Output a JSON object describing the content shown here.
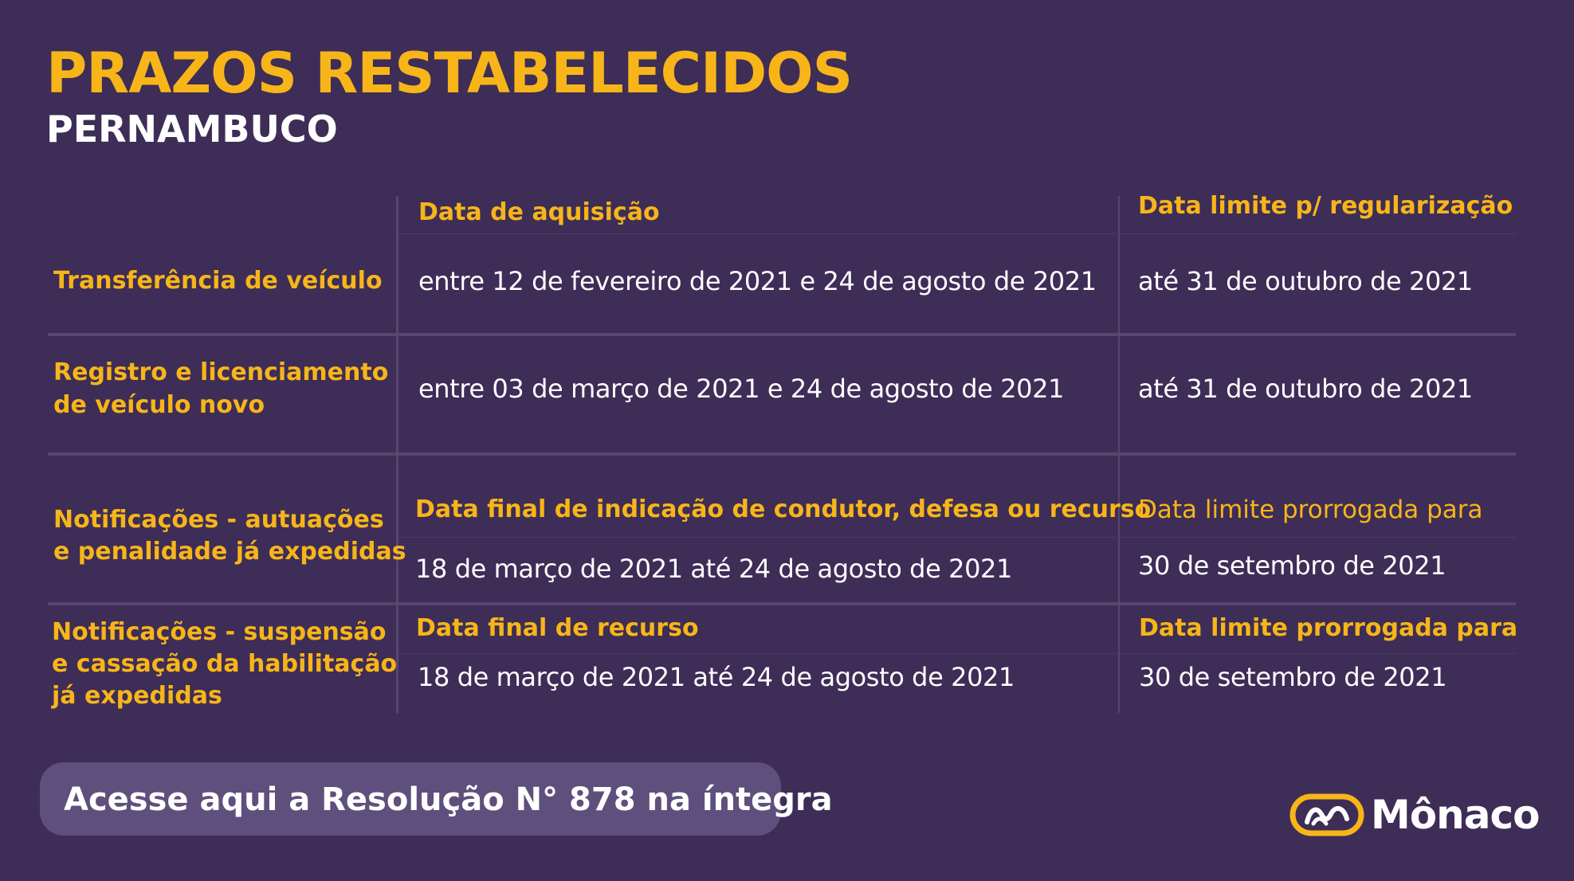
{
  "header": {
    "title": "PRAZOS RESTABELECIDOS",
    "subtitle": "PERNAMBUCO"
  },
  "table": {
    "header_row": {
      "col2": "Data de aquisição",
      "col3": "Data limite p/ regularização"
    },
    "rows": [
      {
        "label_lines": [
          "Transferência de veículo"
        ],
        "col2": "entre 12 de fevereiro de 2021 e 24 de agosto de 2021",
        "col3": "até 31 de outubro de 2021"
      },
      {
        "label_lines": [
          "Registro e licenciamento",
          "de veículo novo"
        ],
        "col2": "entre 03 de março de 2021 e 24 de agosto de 2021",
        "col3": "até 31 de outubro de 2021"
      },
      {
        "label_lines": [
          "Notificações - autuações",
          "e penalidade já expedidas"
        ],
        "col2_header": "Data final de indicação de condutor, defesa ou recurso",
        "col3_header": "Data limite prorrogada para",
        "col2": "18 de março de 2021 até 24 de agosto de 2021",
        "col3": "30 de setembro de 2021"
      },
      {
        "label_lines": [
          "Notificações - suspensão",
          "e cassação da habilitação",
          "já expedidas"
        ],
        "col2_header": "Data final de recurso",
        "col3_header": "Data limite prorrogada para",
        "col2": "18 de março de 2021 até 24 de agosto de 2021",
        "col3": "30 de setembro de 2021"
      }
    ]
  },
  "cta": {
    "label": "Acesse aqui a Resolução N° 878 na íntegra"
  },
  "brand": {
    "name": "Mônaco",
    "logo_icon": "monaco-logo-icon"
  },
  "colors": {
    "background": "#3d2d57",
    "accent": "#f7b519",
    "text": "#ffffff",
    "divider": "#57476f",
    "button": "#5f4f7c"
  }
}
